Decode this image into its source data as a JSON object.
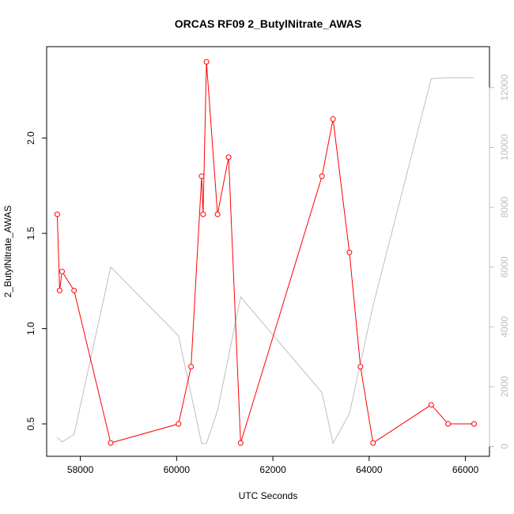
{
  "chart_data": {
    "type": "line",
    "title": "ORCAS RF09 2_ButylNitrate_AWAS",
    "xlabel": "UTC Seconds",
    "ylabel": "2_ButylNitrate_AWAS",
    "xlim": [
      57300,
      66500
    ],
    "ylim": [
      0.33,
      2.48
    ],
    "y2lim": [
      -330,
      13370
    ],
    "x_ticks": [
      58000,
      60000,
      62000,
      64000,
      66000
    ],
    "y_ticks": [
      0.5,
      1.0,
      1.5,
      2.0
    ],
    "y2_ticks": [
      0,
      2000,
      4000,
      6000,
      8000,
      10000,
      12000
    ],
    "x_tick_labels": [
      "58000",
      "60000",
      "62000",
      "64000",
      "66000"
    ],
    "y_tick_labels": [
      "0.5",
      "1.0",
      "1.5",
      "2.0"
    ],
    "y2_tick_labels": [
      "0",
      "2000",
      "4000",
      "6000",
      "8000",
      "10000",
      "12000"
    ],
    "colors": {
      "primary": "#ff0000",
      "secondary": "#bebebe",
      "axis": "#000000"
    },
    "series": [
      {
        "axis": "left",
        "marker": "circle",
        "x": [
          57520,
          57570,
          57620,
          57870,
          58630,
          60040,
          60300,
          60520,
          60550,
          60620,
          60850,
          61080,
          61330,
          63020,
          63250,
          63590,
          63820,
          64080,
          65290,
          65640,
          66180
        ],
        "y": [
          1.6,
          1.2,
          1.3,
          1.2,
          0.4,
          0.5,
          0.8,
          1.8,
          1.6,
          2.4,
          1.6,
          1.9,
          0.4,
          1.8,
          2.1,
          1.4,
          0.8,
          0.4,
          0.6,
          0.5,
          0.5
        ]
      },
      {
        "axis": "right",
        "marker": "none",
        "x": [
          57520,
          57620,
          57870,
          58630,
          60040,
          60520,
          60620,
          60850,
          61330,
          63020,
          63250,
          63590,
          64080,
          65290,
          65640,
          66180
        ],
        "y": [
          300,
          150,
          400,
          6000,
          3700,
          100,
          100,
          1200,
          5000,
          1800,
          100,
          1100,
          4700,
          12300,
          12330,
          12330
        ]
      }
    ]
  }
}
